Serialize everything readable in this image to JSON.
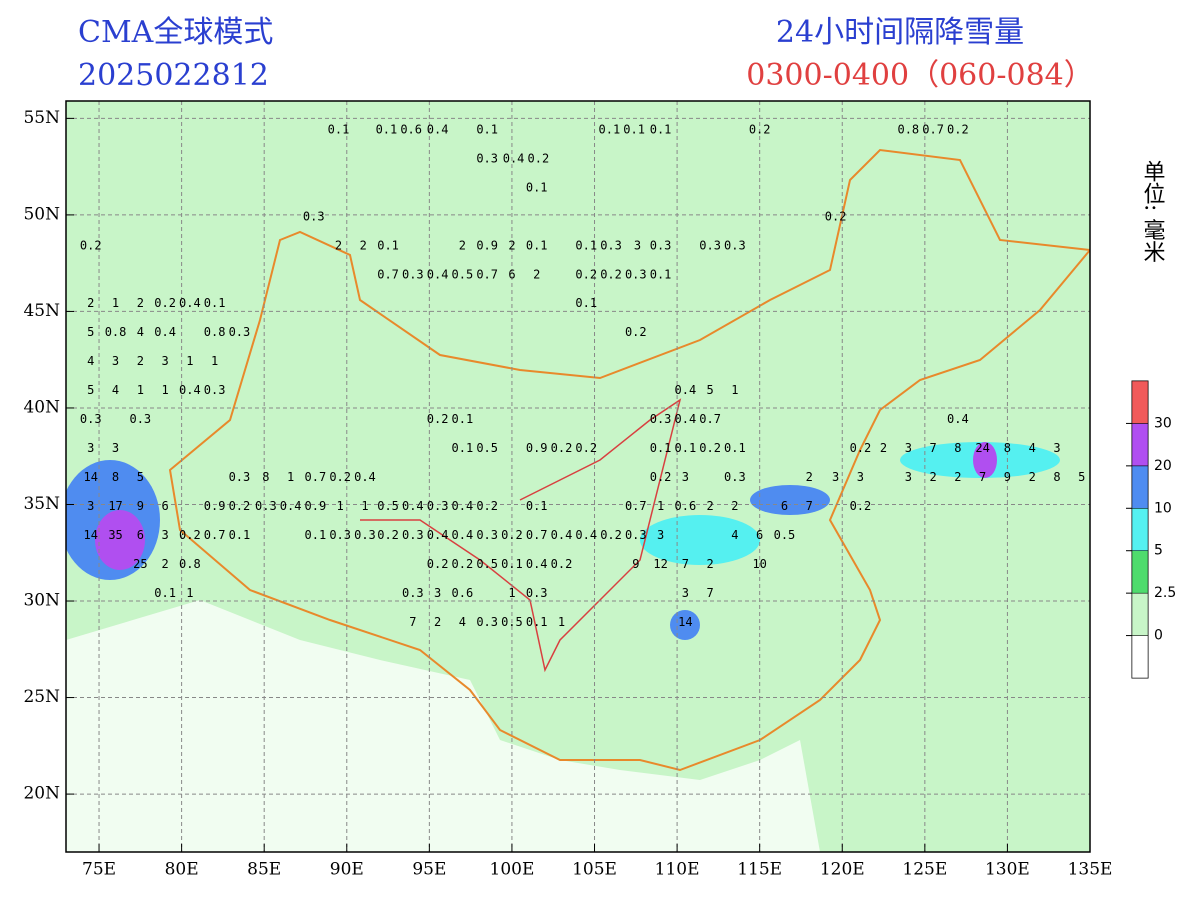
{
  "header": {
    "model": "CMA全球模式",
    "init_time": "2025022812",
    "product": "24小时间隔降雪量",
    "valid": "0300-0400（060-084）",
    "unit": "单位: 毫米"
  },
  "map": {
    "xlim": [
      73,
      135
    ],
    "ylim": [
      17,
      55.9
    ],
    "xticks": [
      {
        "value": 75,
        "label": "75E"
      },
      {
        "value": 80,
        "label": "80E"
      },
      {
        "value": 85,
        "label": "85E"
      },
      {
        "value": 90,
        "label": "90E"
      },
      {
        "value": 95,
        "label": "95E"
      },
      {
        "value": 100,
        "label": "100E"
      },
      {
        "value": 105,
        "label": "105E"
      },
      {
        "value": 110,
        "label": "110E"
      },
      {
        "value": 115,
        "label": "115E"
      },
      {
        "value": 120,
        "label": "120E"
      },
      {
        "value": 125,
        "label": "125E"
      },
      {
        "value": 130,
        "label": "130E"
      },
      {
        "value": 135,
        "label": "135E"
      }
    ],
    "yticks": [
      {
        "value": 20,
        "label": "20N"
      },
      {
        "value": 25,
        "label": "25N"
      },
      {
        "value": 30,
        "label": "30N"
      },
      {
        "value": 35,
        "label": "35N"
      },
      {
        "value": 40,
        "label": "40N"
      },
      {
        "value": 45,
        "label": "45N"
      },
      {
        "value": 50,
        "label": "50N"
      },
      {
        "value": 55,
        "label": "55N"
      }
    ],
    "grid": true,
    "colorbar": {
      "levels": [
        0,
        2.5,
        5,
        10,
        20,
        30
      ],
      "colors": [
        "#ffffff",
        "#c8f5c8",
        "#4fdb6d",
        "#55f0f0",
        "#4f8cf0",
        "#b04ff0",
        "#f05a5a"
      ]
    },
    "station_rows": [
      {
        "lat": 54.4,
        "lon": [
          89.5,
          92.4,
          93.9,
          95.5,
          98.5,
          105.9,
          107.4,
          109.0,
          115.0,
          124.0,
          125.5,
          127.0
        ],
        "values": [
          0.1,
          0.1,
          0.6,
          0.4,
          0.1,
          0.1,
          0.1,
          0.1,
          0.2,
          0.8,
          0.7,
          0.2
        ]
      },
      {
        "lat": 52.9,
        "lon": [
          98.5,
          100.1,
          101.6
        ],
        "values": [
          0.3,
          0.4,
          0.2
        ]
      },
      {
        "lat": 51.4,
        "lon": [
          101.5
        ],
        "values": [
          0.1
        ]
      },
      {
        "lat": 49.9,
        "lon": [
          88.0,
          119.6
        ],
        "values": [
          0.3,
          0.2
        ]
      },
      {
        "lat": 48.4,
        "lon": [
          74.5,
          89.5,
          91.0,
          92.5,
          97.0,
          98.5,
          100.0,
          101.5,
          104.5,
          106.0,
          107.6,
          109.0,
          112.0,
          113.5
        ],
        "values": [
          0.2,
          2,
          2,
          0.1,
          2,
          0.9,
          2,
          0.1,
          0.1,
          0.3,
          3,
          0.3,
          0.3,
          0.3
        ]
      },
      {
        "lat": 46.9,
        "lon": [
          92.5,
          94.0,
          95.5,
          97.0,
          98.5,
          100.0,
          101.5,
          104.5,
          106.0,
          107.5,
          109.0
        ],
        "values": [
          0.7,
          0.3,
          0.4,
          0.5,
          0.7,
          6,
          2,
          0.2,
          0.2,
          0.3,
          0.1
        ]
      },
      {
        "lat": 45.4,
        "lon": [
          74.5,
          76.0,
          77.5,
          79.0,
          80.5,
          82.0,
          104.5
        ],
        "values": [
          2,
          1,
          2,
          0.2,
          0.4,
          0.1,
          0.1
        ]
      },
      {
        "lat": 43.9,
        "lon": [
          74.5,
          76.0,
          77.5,
          79.0,
          82.0,
          83.5,
          107.5
        ],
        "values": [
          5,
          0.8,
          4,
          0.4,
          0.8,
          0.3,
          0.2
        ]
      },
      {
        "lat": 42.4,
        "lon": [
          74.5,
          76.0,
          77.5,
          79.0,
          80.5,
          82.0
        ],
        "values": [
          4,
          3,
          2,
          3,
          1,
          1
        ]
      },
      {
        "lat": 40.9,
        "lon": [
          74.5,
          76.0,
          77.5,
          79.0,
          80.5,
          82.0,
          110.5,
          112.0,
          113.5
        ],
        "values": [
          5,
          4,
          1,
          1,
          0.4,
          0.3,
          0.4,
          5,
          1
        ]
      },
      {
        "lat": 39.4,
        "lon": [
          74.5,
          77.5,
          95.5,
          97.0,
          109.0,
          110.5,
          112.0,
          127.0
        ],
        "values": [
          0.3,
          0.3,
          0.2,
          0.1,
          0.3,
          0.4,
          0.7,
          0.4
        ]
      },
      {
        "lat": 37.9,
        "lon": [
          74.5,
          76.0,
          97.0,
          98.5,
          101.5,
          103.0,
          104.5,
          109.0,
          110.5,
          112.0,
          113.5,
          121.1,
          122.5,
          124.0,
          125.5,
          127.0,
          128.5,
          130.0,
          131.5,
          133.0
        ],
        "values": [
          3,
          3,
          0.1,
          0.5,
          0.9,
          0.2,
          0.2,
          0.1,
          0.1,
          0.2,
          0.1,
          0.2,
          2,
          3,
          7,
          8,
          24,
          8,
          4,
          3
        ]
      },
      {
        "lat": 36.4,
        "lon": [
          74.5,
          76.0,
          77.5,
          83.5,
          85.1,
          86.6,
          88.1,
          89.6,
          91.1,
          109.0,
          110.5,
          113.5,
          118.0,
          119.6,
          121.1,
          124.0,
          125.5,
          127.0,
          128.5,
          130.0,
          131.5,
          133.0,
          134.5
        ],
        "values": [
          14,
          8,
          5,
          0.3,
          8,
          1,
          0.7,
          0.2,
          0.4,
          0.2,
          3,
          0.3,
          2,
          3,
          3,
          3,
          2,
          2,
          7,
          9,
          2,
          8,
          5
        ]
      },
      {
        "lat": 34.9,
        "lon": [
          74.5,
          76.0,
          77.5,
          79.0,
          82.0,
          83.5,
          85.1,
          86.6,
          88.1,
          89.6,
          91.1,
          92.5,
          94.0,
          95.5,
          97.0,
          98.5,
          101.5,
          107.5,
          109.0,
          110.5,
          112.0,
          113.5,
          116.5,
          118.0,
          121.1
        ],
        "values": [
          3,
          17,
          9,
          6,
          0.9,
          0.2,
          0.3,
          0.4,
          0.9,
          1,
          1,
          0.5,
          0.4,
          0.3,
          0.4,
          0.2,
          0.1,
          0.7,
          1,
          0.6,
          2,
          2,
          6,
          7,
          0.2
        ]
      },
      {
        "lat": 33.4,
        "lon": [
          74.5,
          76.0,
          77.5,
          79.0,
          80.5,
          82.0,
          83.5,
          88.1,
          89.6,
          91.1,
          92.5,
          94.0,
          95.5,
          97.0,
          98.5,
          100.0,
          101.5,
          103.0,
          104.5,
          106.0,
          107.5,
          109.0,
          113.5,
          115.0,
          116.5
        ],
        "values": [
          14,
          35,
          6,
          3,
          0.2,
          0.7,
          0.1,
          0.1,
          0.3,
          0.3,
          0.2,
          0.3,
          0.4,
          0.4,
          0.3,
          0.2,
          0.7,
          0.4,
          0.4,
          0.2,
          0.3,
          3,
          4,
          6,
          0.5
        ]
      },
      {
        "lat": 31.9,
        "lon": [
          77.5,
          79.0,
          80.5,
          95.5,
          97.0,
          98.5,
          100.0,
          101.5,
          103.0,
          107.5,
          109.0,
          110.5,
          112.0,
          115.0
        ],
        "values": [
          25,
          2,
          0.8,
          0.2,
          0.2,
          0.5,
          0.1,
          0.4,
          0.2,
          9,
          12,
          7,
          2,
          10
        ]
      },
      {
        "lat": 30.4,
        "lon": [
          79.0,
          80.5,
          94.0,
          95.5,
          97.0,
          100.0,
          101.5,
          110.5,
          112.0
        ],
        "values": [
          0.1,
          1,
          0.3,
          3,
          0.6,
          1,
          0.3,
          3,
          7
        ]
      },
      {
        "lat": 28.9,
        "lon": [
          94.0,
          95.5,
          97.0,
          98.5,
          100.0,
          101.5,
          103.0,
          110.5
        ],
        "values": [
          7,
          2,
          4,
          0.3,
          0.5,
          0.1,
          1,
          14
        ]
      }
    ]
  }
}
